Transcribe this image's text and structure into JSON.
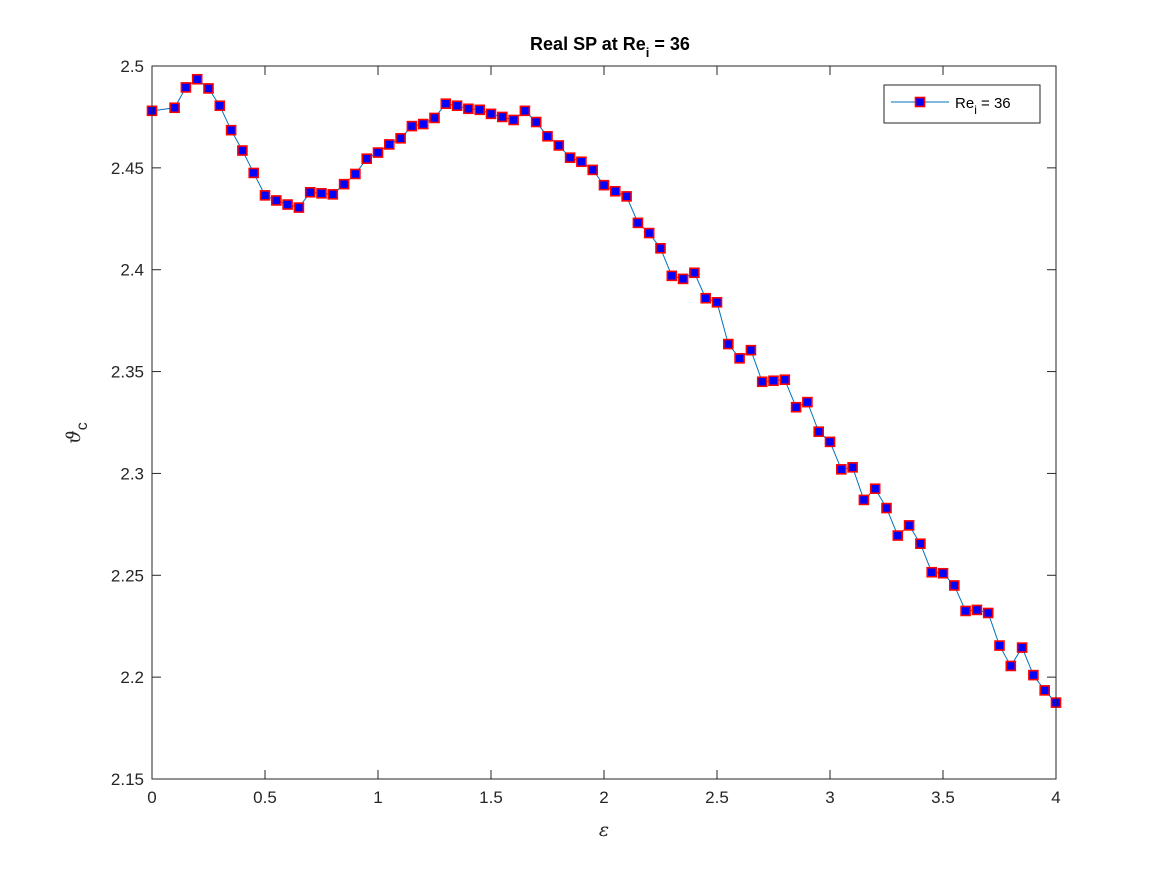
{
  "chart_data": {
    "type": "line",
    "title": "Real SP at Re",
    "title_subscript": "i",
    "title_suffix": " = 36",
    "xlabel": "ε",
    "ylabel": "ϑ",
    "ylabel_subscript": "c",
    "xlim": [
      0,
      4
    ],
    "ylim": [
      2.15,
      2.5
    ],
    "xticks": [
      "0",
      "0.5",
      "1",
      "1.5",
      "2",
      "2.5",
      "3",
      "3.5",
      "4"
    ],
    "yticks": [
      "2.15",
      "2.2",
      "2.25",
      "2.3",
      "2.35",
      "2.4",
      "2.45",
      "2.5"
    ],
    "grid": false,
    "legend_placement": "top-right",
    "series": [
      {
        "name": "Re",
        "name_subscript": "i",
        "name_suffix": " = 36",
        "line_color": "#0072bd",
        "marker": "square",
        "marker_edge_color": "#ff0000",
        "marker_face_color": "#0000ff",
        "x": [
          0,
          0.1,
          0.15,
          0.2,
          0.25,
          0.3,
          0.35,
          0.4,
          0.45,
          0.5,
          0.55,
          0.6,
          0.65,
          0.7,
          0.75,
          0.8,
          0.85,
          0.9,
          0.95,
          1.0,
          1.05,
          1.1,
          1.15,
          1.2,
          1.25,
          1.3,
          1.35,
          1.4,
          1.45,
          1.5,
          1.55,
          1.6,
          1.65,
          1.7,
          1.75,
          1.8,
          1.85,
          1.9,
          1.95,
          2.0,
          2.05,
          2.1,
          2.15,
          2.2,
          2.25,
          2.3,
          2.35,
          2.4,
          2.45,
          2.5,
          2.55,
          2.6,
          2.65,
          2.7,
          2.75,
          2.8,
          2.85,
          2.9,
          2.95,
          3.0,
          3.05,
          3.1,
          3.15,
          3.2,
          3.25,
          3.3,
          3.35,
          3.4,
          3.45,
          3.5,
          3.55,
          3.6,
          3.65,
          3.7,
          3.75,
          3.8,
          3.85,
          3.9,
          3.95,
          4.0
        ],
        "y": [
          2.478,
          2.4795,
          2.4895,
          2.4935,
          2.489,
          2.4805,
          2.4685,
          2.4585,
          2.4475,
          2.4365,
          2.434,
          2.432,
          2.4305,
          2.438,
          2.4375,
          2.437,
          2.442,
          2.447,
          2.4545,
          2.4575,
          2.4615,
          2.4645,
          2.4705,
          2.4715,
          2.4745,
          2.4815,
          2.4805,
          2.479,
          2.4785,
          2.4765,
          2.475,
          2.4735,
          2.478,
          2.4725,
          2.4655,
          2.461,
          2.455,
          2.453,
          2.449,
          2.4415,
          2.4385,
          2.436,
          2.423,
          2.418,
          2.4105,
          2.397,
          2.3955,
          2.3985,
          2.386,
          2.384,
          2.3635,
          2.3565,
          2.3605,
          2.345,
          2.3455,
          2.346,
          2.3325,
          2.335,
          2.3205,
          2.3155,
          2.302,
          2.303,
          2.287,
          2.2925,
          2.283,
          2.2695,
          2.2745,
          2.2655,
          2.2515,
          2.251,
          2.245,
          2.2325,
          2.233,
          2.2315,
          2.2155,
          2.2055,
          2.2145,
          2.201,
          2.1935,
          2.1875
        ]
      }
    ]
  }
}
